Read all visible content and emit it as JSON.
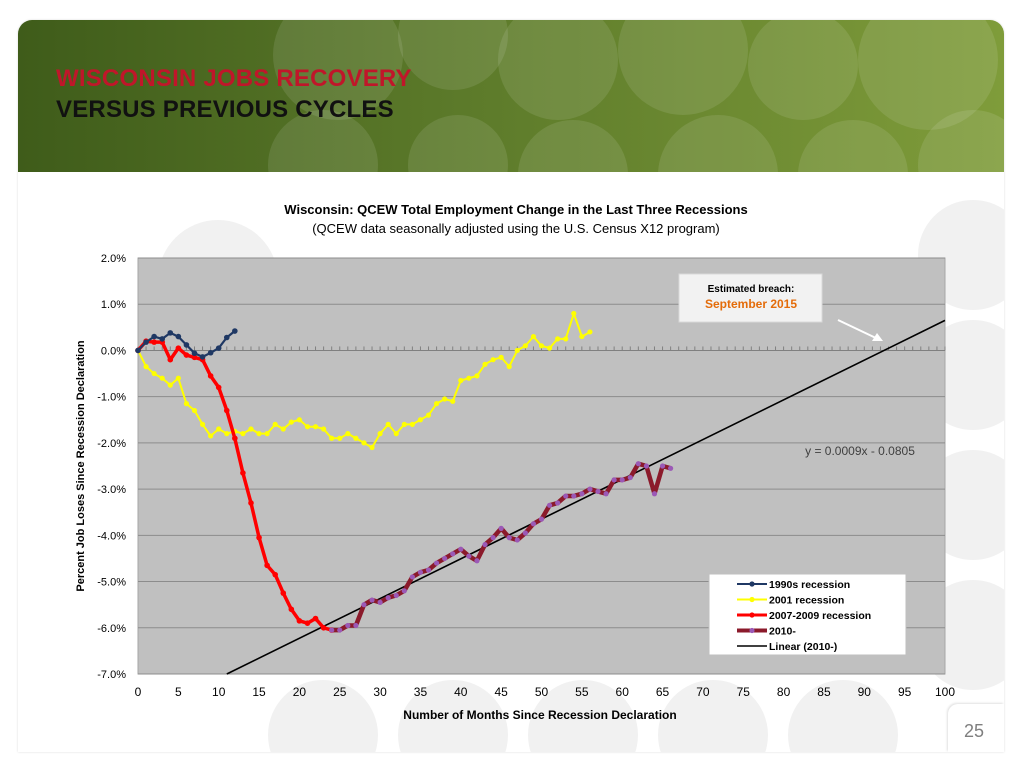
{
  "slide": {
    "title_line1": "WISCONSIN JOBS RECOVERY",
    "title_line2": "VERSUS PREVIOUS CYCLES",
    "page_number": "25"
  },
  "chart_data": {
    "type": "line",
    "title": "Wisconsin: QCEW Total Employment Change in the Last Three Recessions",
    "subtitle": "(QCEW data seasonally adjusted using the U.S. Census X12 program)",
    "xlabel": "Number of Months Since Recession Declaration",
    "ylabel": "Percent Job Loses  Since Recession Declaration",
    "xlim": [
      0,
      100
    ],
    "ylim": [
      -7.0,
      2.0
    ],
    "x_ticks": [
      0,
      5,
      10,
      15,
      20,
      25,
      30,
      35,
      40,
      45,
      50,
      55,
      60,
      65,
      70,
      75,
      80,
      85,
      90,
      95,
      100
    ],
    "y_ticks": [
      "2.0%",
      "1.0%",
      "0.0%",
      "-1.0%",
      "-2.0%",
      "-3.0%",
      "-4.0%",
      "-5.0%",
      "-6.0%",
      "-7.0%"
    ],
    "grid": true,
    "plot_background": "#c0c0c0",
    "legend_position": "bottom-right",
    "annotation": {
      "label": "Estimated breach:",
      "value": "September 2015"
    },
    "equation": "y = 0.0009x - 0.0805",
    "series": [
      {
        "name": "1990s recession",
        "color": "#1f3864",
        "x": [
          0,
          1,
          2,
          3,
          4,
          5,
          6,
          7,
          8,
          9,
          10,
          11,
          12
        ],
        "y": [
          0.0,
          0.18,
          0.3,
          0.25,
          0.38,
          0.3,
          0.12,
          -0.06,
          -0.14,
          -0.05,
          0.05,
          0.28,
          0.42
        ]
      },
      {
        "name": "2001 recession",
        "color": "#ffff00",
        "x": [
          0,
          1,
          2,
          3,
          4,
          5,
          6,
          7,
          8,
          9,
          10,
          11,
          12,
          13,
          14,
          15,
          16,
          17,
          18,
          19,
          20,
          21,
          22,
          23,
          24,
          25,
          26,
          27,
          28,
          29,
          30,
          31,
          32,
          33,
          34,
          35,
          36,
          37,
          38,
          39,
          40,
          41,
          42,
          43,
          44,
          45,
          46,
          47,
          48,
          49,
          50,
          51,
          52,
          53,
          54,
          55,
          56
        ],
        "y": [
          0.0,
          -0.35,
          -0.5,
          -0.6,
          -0.75,
          -0.6,
          -1.15,
          -1.3,
          -1.6,
          -1.85,
          -1.7,
          -1.8,
          -1.75,
          -1.8,
          -1.7,
          -1.8,
          -1.8,
          -1.6,
          -1.7,
          -1.55,
          -1.5,
          -1.65,
          -1.65,
          -1.7,
          -1.9,
          -1.9,
          -1.8,
          -1.9,
          -2.0,
          -2.1,
          -1.8,
          -1.6,
          -1.8,
          -1.6,
          -1.6,
          -1.5,
          -1.4,
          -1.15,
          -1.05,
          -1.1,
          -0.65,
          -0.6,
          -0.55,
          -0.3,
          -0.2,
          -0.15,
          -0.35,
          0.0,
          0.1,
          0.3,
          0.1,
          0.05,
          0.25,
          0.25,
          0.8,
          0.3,
          0.4
        ]
      },
      {
        "name": "2007-2009 recession",
        "color": "#ff0000",
        "x": [
          0,
          1,
          2,
          3,
          4,
          5,
          6,
          7,
          8,
          9,
          10,
          11,
          12,
          13,
          14,
          15,
          16,
          17,
          18,
          19,
          20,
          21,
          22,
          23,
          24
        ],
        "y": [
          0.0,
          0.2,
          0.18,
          0.18,
          -0.2,
          0.05,
          -0.1,
          -0.15,
          -0.2,
          -0.55,
          -0.8,
          -1.3,
          -1.9,
          -2.65,
          -3.3,
          -4.05,
          -4.65,
          -4.85,
          -5.25,
          -5.6,
          -5.85,
          -5.9,
          -5.8,
          -6.0,
          -6.05
        ]
      },
      {
        "name": "2010-",
        "color": "#8b1a2b",
        "x": [
          24,
          25,
          26,
          27,
          28,
          29,
          30,
          31,
          32,
          33,
          34,
          35,
          36,
          37,
          38,
          39,
          40,
          41,
          42,
          43,
          44,
          45,
          46,
          47,
          48,
          49,
          50,
          51,
          52,
          53,
          54,
          55,
          56,
          57,
          58,
          59,
          60,
          61,
          62,
          63,
          64,
          65,
          66
        ],
        "y": [
          -6.05,
          -6.05,
          -5.95,
          -5.95,
          -5.5,
          -5.4,
          -5.45,
          -5.35,
          -5.3,
          -5.2,
          -4.9,
          -4.8,
          -4.75,
          -4.6,
          -4.5,
          -4.4,
          -4.3,
          -4.45,
          -4.55,
          -4.2,
          -4.05,
          -3.85,
          -4.05,
          -4.1,
          -3.95,
          -3.75,
          -3.65,
          -3.35,
          -3.3,
          -3.15,
          -3.15,
          -3.1,
          -3.0,
          -3.05,
          -3.1,
          -2.8,
          -2.8,
          -2.75,
          -2.45,
          -2.5,
          -3.1,
          -2.5,
          -2.55
        ]
      },
      {
        "name": "Linear (2010-)",
        "color": "#000000",
        "x": [
          11,
          100
        ],
        "y": [
          -7.0,
          0.65
        ]
      }
    ]
  }
}
